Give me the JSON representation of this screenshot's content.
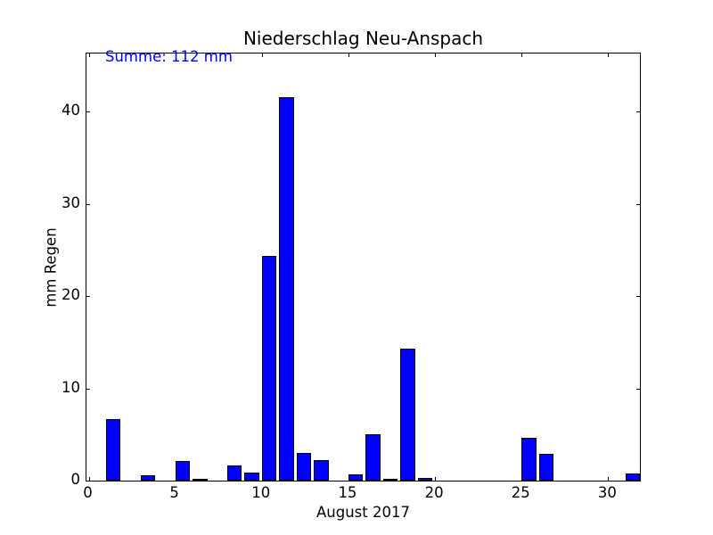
{
  "figure": {
    "title": "Niederschlag Neu-Anspach",
    "annotation": "Summe: 112 mm",
    "annotation_color": "#0000ff",
    "x_axis_label": "August 2017",
    "y_axis_label": "mm Regen"
  },
  "chart_data": {
    "type": "bar",
    "title": "Niederschlag Neu-Anspach",
    "xlabel": "August 2017",
    "ylabel": "mm Regen",
    "annotation": {
      "text": "Summe: 112 mm",
      "color": "#0000ff",
      "position": "top-left-inside"
    },
    "categories": [
      1,
      2,
      3,
      4,
      5,
      6,
      7,
      8,
      9,
      10,
      11,
      12,
      13,
      14,
      15,
      16,
      17,
      18,
      19,
      20,
      21,
      22,
      23,
      24,
      25,
      26,
      27,
      28,
      29,
      30,
      31
    ],
    "values": [
      6.7,
      0,
      0.6,
      0,
      2.1,
      0.2,
      0,
      1.6,
      0.9,
      24.4,
      41.6,
      3.0,
      2.2,
      0,
      0.7,
      5.0,
      0.1,
      14.3,
      0.3,
      0,
      0,
      0,
      0,
      0,
      4.6,
      2.9,
      0,
      0,
      0,
      0,
      0.8
    ],
    "sum_mm": 112,
    "bar_color": "#0000ff",
    "bar_edge_color": "#000000",
    "background_color": "#ffffff",
    "xticks": [
      0,
      5,
      10,
      15,
      20,
      25,
      30
    ],
    "xtick_labels": [
      "0",
      "5",
      "10",
      "15",
      "20",
      "25",
      "30"
    ],
    "yticks": [
      0,
      10,
      20,
      30,
      40
    ],
    "ytick_labels": [
      "0",
      "10",
      "20",
      "30",
      "40"
    ],
    "xlim": [
      -0.1,
      31.95
    ],
    "ylim": [
      0,
      46.4
    ],
    "grid": false,
    "legend": "none",
    "tick_direction": "in",
    "bar_width_days": 0.85
  }
}
